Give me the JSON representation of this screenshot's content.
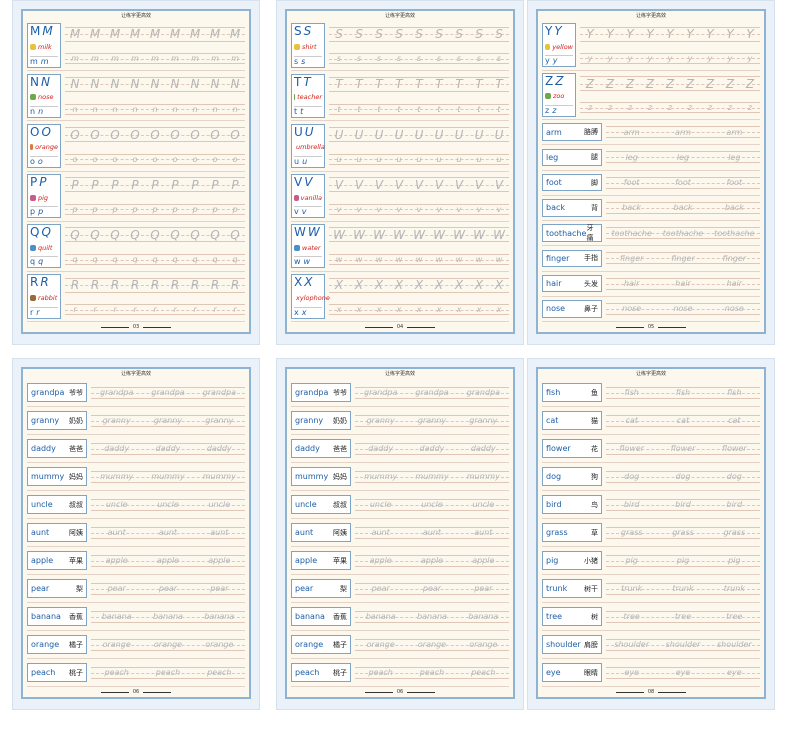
{
  "pages": [
    {
      "header": "让练字更高效",
      "number": "03",
      "letters": [
        {
          "upper": "M",
          "lower": "m",
          "word": "milk"
        },
        {
          "upper": "N",
          "lower": "n",
          "word": "nose"
        },
        {
          "upper": "O",
          "lower": "o",
          "word": "orange"
        },
        {
          "upper": "P",
          "lower": "p",
          "word": "pig"
        },
        {
          "upper": "Q",
          "lower": "q",
          "word": "quilt"
        },
        {
          "upper": "R",
          "lower": "r",
          "word": "rabbit"
        }
      ],
      "words": []
    },
    {
      "header": "让练字更高效",
      "number": "04",
      "letters": [
        {
          "upper": "S",
          "lower": "s",
          "word": "shirt"
        },
        {
          "upper": "T",
          "lower": "t",
          "word": "teacher"
        },
        {
          "upper": "U",
          "lower": "u",
          "word": "umbrella"
        },
        {
          "upper": "V",
          "lower": "v",
          "word": "vanilla"
        },
        {
          "upper": "W",
          "lower": "w",
          "word": "water"
        },
        {
          "upper": "X",
          "lower": "x",
          "word": "xylophone"
        }
      ],
      "words": []
    },
    {
      "header": "让练字更高效",
      "number": "05",
      "letters": [
        {
          "upper": "Y",
          "lower": "y",
          "word": "yellow"
        },
        {
          "upper": "Z",
          "lower": "z",
          "word": "zoo"
        }
      ],
      "words": [
        {
          "en": "arm",
          "zh": "胳膊"
        },
        {
          "en": "leg",
          "zh": "腿"
        },
        {
          "en": "foot",
          "zh": "脚"
        },
        {
          "en": "back",
          "zh": "背"
        },
        {
          "en": "toothache",
          "zh": "牙痛"
        },
        {
          "en": "finger",
          "zh": "手指"
        },
        {
          "en": "hair",
          "zh": "头发"
        },
        {
          "en": "nose",
          "zh": "鼻子"
        }
      ]
    },
    {
      "header": "让练字更高效",
      "number": "06",
      "letters": [],
      "words": [
        {
          "en": "grandpa",
          "zh": "爷爷"
        },
        {
          "en": "granny",
          "zh": "奶奶"
        },
        {
          "en": "daddy",
          "zh": "爸爸"
        },
        {
          "en": "mummy",
          "zh": "妈妈"
        },
        {
          "en": "uncle",
          "zh": "叔叔"
        },
        {
          "en": "aunt",
          "zh": "阿姨"
        },
        {
          "en": "apple",
          "zh": "苹果"
        },
        {
          "en": "pear",
          "zh": "梨"
        },
        {
          "en": "banana",
          "zh": "香蕉"
        },
        {
          "en": "orange",
          "zh": "橘子"
        },
        {
          "en": "peach",
          "zh": "桃子"
        }
      ]
    },
    {
      "header": "让练字更高效",
      "number": "06",
      "letters": [],
      "words": [
        {
          "en": "grandpa",
          "zh": "爷爷"
        },
        {
          "en": "granny",
          "zh": "奶奶"
        },
        {
          "en": "daddy",
          "zh": "爸爸"
        },
        {
          "en": "mummy",
          "zh": "妈妈"
        },
        {
          "en": "uncle",
          "zh": "叔叔"
        },
        {
          "en": "aunt",
          "zh": "阿姨"
        },
        {
          "en": "apple",
          "zh": "苹果"
        },
        {
          "en": "pear",
          "zh": "梨"
        },
        {
          "en": "banana",
          "zh": "香蕉"
        },
        {
          "en": "orange",
          "zh": "橘子"
        },
        {
          "en": "peach",
          "zh": "桃子"
        }
      ]
    },
    {
      "header": "让练字更高效",
      "number": "08",
      "letters": [],
      "words": [
        {
          "en": "fish",
          "zh": "鱼"
        },
        {
          "en": "cat",
          "zh": "猫"
        },
        {
          "en": "flower",
          "zh": "花"
        },
        {
          "en": "dog",
          "zh": "狗"
        },
        {
          "en": "bird",
          "zh": "鸟"
        },
        {
          "en": "grass",
          "zh": "草"
        },
        {
          "en": "pig",
          "zh": "小猪"
        },
        {
          "en": "trunk",
          "zh": "树干"
        },
        {
          "en": "tree",
          "zh": "树"
        },
        {
          "en": "shoulder",
          "zh": "肩膀"
        },
        {
          "en": "eye",
          "zh": "眼睛"
        }
      ]
    }
  ]
}
